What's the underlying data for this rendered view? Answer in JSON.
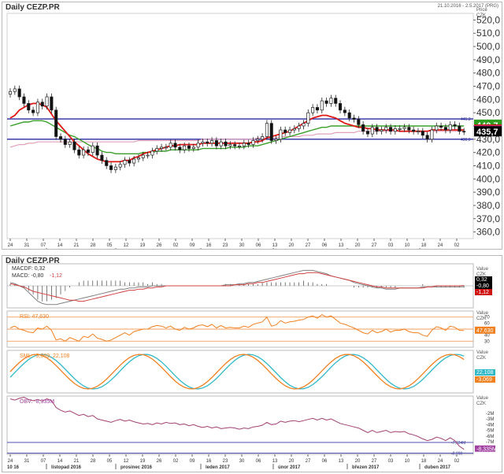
{
  "header": {
    "title": "Daily CEZP.PR",
    "date_range": "21.10.2016 - 2.5.2017 (PRG)",
    "price_label": "Price",
    "currency": "CZK",
    "title_lower": "Daily CEZP.PR"
  },
  "price_axis": {
    "ticks": [
      "520,0",
      "510,0",
      "500,0",
      "490,0",
      "480,0",
      "470,0",
      "460,0",
      "450,0",
      "440,0",
      "430,0",
      "420,0",
      "410,0",
      "400,0",
      "390,0",
      "380,0",
      "370,0",
      "360,0"
    ],
    "tick_values": [
      520,
      510,
      500,
      490,
      480,
      470,
      460,
      450,
      440,
      430,
      420,
      410,
      400,
      390,
      380,
      370,
      360
    ],
    "range": [
      355,
      525
    ]
  },
  "price_badges": [
    {
      "text": "440,7",
      "value": 440.7,
      "color": "#2e9e1f"
    },
    {
      "text": "437,0",
      "value": 437.0,
      "color": "#d01414"
    },
    {
      "text": "436,2",
      "value": 436.2,
      "color": "#c03ea0"
    },
    {
      "text": "435,7",
      "value": 435.7,
      "color": "#000000"
    }
  ],
  "hlines": [
    {
      "label": "445,3",
      "value": 445.3
    },
    {
      "label": "430,0",
      "value": 430.0
    }
  ],
  "x_axis": {
    "day_ticks": [
      "24",
      "31",
      "07",
      "14",
      "21",
      "28",
      "05",
      "12",
      "19",
      "26",
      "02",
      "09",
      "16",
      "23",
      "30",
      "06",
      "13",
      "20",
      "27",
      "06",
      "13",
      "20",
      "27",
      "03",
      "10",
      "18",
      "24",
      "02"
    ],
    "months": [
      "10 16",
      "listopad 2016",
      "prosinec 2016",
      "leden 2017",
      "únor 2017",
      "březen 2017",
      "duben 2017"
    ]
  },
  "chart_data": [
    {
      "type": "candlestick",
      "title": "Daily CEZP.PR",
      "ylabel": "Price CZK",
      "ylim": [
        355,
        525
      ],
      "close": [
        466,
        468,
        462,
        457,
        452,
        450,
        458,
        455,
        462,
        452,
        432,
        430,
        426,
        428,
        422,
        418,
        422,
        420,
        425,
        418,
        414,
        410,
        407,
        409,
        411,
        414,
        412,
        415,
        416,
        418,
        418,
        421,
        423,
        424,
        424,
        427,
        424,
        422,
        425,
        423,
        424,
        427,
        428,
        427,
        429,
        425,
        428,
        425,
        426,
        425,
        425,
        427,
        426,
        429,
        430,
        432,
        442,
        429,
        430,
        437,
        435,
        437,
        438,
        440,
        442,
        450,
        454,
        452,
        459,
        457,
        461,
        457,
        452,
        450,
        446,
        445,
        441,
        436,
        434,
        439,
        436,
        437,
        439,
        436,
        438,
        438,
        439,
        437,
        436,
        436,
        433,
        430,
        437,
        440,
        439,
        437,
        441,
        440,
        436,
        435.7
      ],
      "sma_short_red": [
        446,
        448,
        452,
        454,
        456,
        457,
        457,
        456,
        454,
        449,
        444,
        440,
        436,
        432,
        428,
        425,
        422,
        419,
        417,
        415,
        414,
        413,
        413,
        413,
        413,
        414,
        414,
        416,
        417,
        419,
        420,
        421,
        422,
        423,
        424,
        425,
        425,
        426,
        426,
        426,
        426,
        426,
        427,
        427,
        427,
        427,
        427,
        427,
        427,
        427,
        427,
        427,
        427,
        428,
        428,
        429,
        431,
        432,
        433,
        434,
        435,
        436,
        438,
        440,
        442,
        444,
        446,
        447,
        448,
        448,
        447,
        446,
        444,
        442,
        441,
        440,
        439,
        439,
        438,
        438,
        437,
        437,
        437,
        437,
        437,
        436,
        436,
        436,
        436,
        436,
        436,
        436,
        437,
        437,
        437,
        437,
        437,
        437,
        437,
        437
      ],
      "sma_long_green": [
        440,
        441,
        442,
        443,
        443,
        444,
        444,
        444,
        443,
        441,
        439,
        437,
        435,
        433,
        432,
        430,
        428,
        426,
        424,
        423,
        421,
        420,
        420,
        419,
        419,
        419,
        419,
        419,
        419,
        420,
        420,
        420,
        421,
        421,
        421,
        422,
        422,
        422,
        422,
        422,
        422,
        422,
        423,
        423,
        423,
        423,
        423,
        423,
        424,
        424,
        424,
        424,
        425,
        425,
        425,
        426,
        427,
        428,
        429,
        430,
        431,
        432,
        433,
        434,
        435,
        436,
        437,
        438,
        439,
        439,
        440,
        440,
        440,
        440,
        440,
        440,
        440,
        440,
        440,
        440,
        440,
        440,
        440,
        440,
        440,
        440,
        440,
        440,
        440,
        440,
        440,
        440,
        440,
        440,
        440,
        440,
        440,
        440,
        440,
        440
      ],
      "sma_pink": [
        424,
        425,
        426,
        426,
        427,
        427,
        428,
        428,
        428,
        428,
        428,
        428,
        428,
        428,
        428,
        428,
        428,
        428,
        428,
        428,
        428,
        428,
        428,
        428,
        428,
        428,
        428,
        428,
        429,
        429,
        429,
        429,
        429,
        429,
        429,
        429,
        429,
        429,
        429,
        429,
        429,
        429,
        430,
        430,
        430,
        430,
        430,
        430,
        430,
        430,
        430,
        430,
        430,
        430,
        431,
        431,
        431,
        431,
        431,
        432,
        432,
        432,
        432,
        432,
        433,
        433,
        433,
        434,
        434,
        434,
        434,
        435,
        435,
        435,
        435,
        435,
        436,
        436,
        436,
        436,
        436,
        436,
        436,
        436,
        436,
        436,
        436,
        436,
        436,
        436,
        436,
        436,
        436,
        436,
        436,
        436,
        436,
        436,
        436,
        436
      ]
    },
    {
      "type": "line",
      "title": "MACD",
      "series": [
        {
          "name": "MACDF: 0,32",
          "color": "#d04040",
          "values": [
            2,
            1,
            0,
            -1,
            -3,
            -5,
            -6,
            -7,
            -8,
            -9,
            -10,
            -11,
            -12,
            -13,
            -13,
            -14,
            -14,
            -13,
            -12,
            -11,
            -10,
            -9,
            -8,
            -7,
            -6,
            -5,
            -4,
            -4,
            -3,
            -3,
            -2,
            -2,
            -1,
            -1,
            0,
            0,
            0,
            0,
            0,
            0,
            0,
            0,
            0,
            0,
            0,
            0,
            0,
            0,
            0,
            1,
            1,
            1,
            2,
            2,
            3,
            3,
            4,
            5,
            6,
            7,
            8,
            9,
            10,
            11,
            11,
            12,
            12,
            12,
            11,
            10,
            9,
            8,
            7,
            6,
            5,
            4,
            3,
            2,
            1,
            0,
            -1,
            -1,
            -2,
            -2,
            -2,
            -2,
            -2,
            -2,
            -2,
            -2,
            -2,
            -1,
            -1,
            0,
            0,
            0,
            0,
            0,
            0,
            0.32
          ]
        },
        {
          "name": "MACD: -0,80",
          "color": "#808080",
          "values": [
            3,
            2,
            0,
            -2,
            -6,
            -10,
            -14,
            -16,
            -17,
            -17,
            -17,
            -16,
            -15,
            -14,
            -13,
            -12,
            -11,
            -10,
            -9,
            -8,
            -7,
            -6,
            -5,
            -4,
            -3,
            -3,
            -2,
            -2,
            -1,
            -1,
            -1,
            0,
            0,
            0,
            0,
            0,
            0,
            0,
            0,
            0,
            0,
            0,
            0,
            0,
            0,
            0,
            0,
            1,
            1,
            1,
            2,
            2,
            3,
            3,
            4,
            5,
            6,
            7,
            8,
            9,
            10,
            11,
            12,
            13,
            14,
            14,
            14,
            13,
            12,
            11,
            9,
            8,
            7,
            6,
            5,
            3,
            2,
            1,
            0,
            -1,
            -2,
            -2,
            -3,
            -3,
            -3,
            -2,
            -2,
            -2,
            -2,
            -2,
            -1,
            -1,
            -1,
            -1,
            -1,
            -1,
            -1,
            -1,
            -1,
            -0.8
          ]
        },
        {
          "name": "-1,12",
          "color": "#e04848",
          "values": []
        }
      ],
      "value_header": "Value",
      "currency": "CZK",
      "badges": [
        {
          "text": "0,32",
          "color": "#000000"
        },
        {
          "text": "-0,80",
          "color": "#000000"
        },
        {
          "text": "-1,12",
          "color": "#d01414"
        }
      ]
    },
    {
      "type": "line",
      "title": "RSI: 47,630",
      "ylim": [
        20,
        80
      ],
      "levels": [
        70,
        50,
        30
      ],
      "ticks": [
        "70",
        "60",
        "50",
        "40",
        "30"
      ],
      "series": [
        {
          "name": "RSI",
          "color": "#f08020",
          "values": [
            52,
            55,
            50,
            48,
            45,
            44,
            52,
            50,
            55,
            48,
            32,
            34,
            30,
            36,
            33,
            30,
            38,
            36,
            42,
            35,
            33,
            30,
            32,
            36,
            40,
            44,
            40,
            46,
            48,
            50,
            50,
            54,
            56,
            55,
            52,
            55,
            50,
            48,
            53,
            50,
            52,
            56,
            57,
            54,
            58,
            52,
            56,
            52,
            53,
            52,
            52,
            55,
            53,
            58,
            60,
            62,
            70,
            55,
            57,
            64,
            60,
            62,
            63,
            65,
            66,
            70,
            72,
            68,
            74,
            70,
            72,
            66,
            60,
            58,
            55,
            52,
            48,
            44,
            42,
            48,
            44,
            46,
            50,
            45,
            48,
            48,
            50,
            46,
            44,
            44,
            40,
            38,
            48,
            54,
            52,
            48,
            55,
            53,
            48,
            47.63
          ]
        }
      ],
      "badge": {
        "text": "47,630",
        "color": "#f08020"
      },
      "value_header": "Value",
      "currency": "CZK"
    },
    {
      "type": "line",
      "title": "SML: -3,069; 22,108",
      "series": [
        {
          "name": "-3,069",
          "color": "#f08020"
        },
        {
          "name": "22,108",
          "color": "#30b8c8"
        }
      ],
      "badges": [
        {
          "text": "22,108",
          "color": "#30b8c8"
        },
        {
          "text": "-3,069",
          "color": "#f08020"
        }
      ],
      "value_header": "Value",
      "currency": "CZK"
    },
    {
      "type": "line",
      "title": "OBV: -8,335M",
      "ticks": [
        "-2M",
        "-3M",
        "-4M",
        "-5M",
        "-6M",
        "-7M"
      ],
      "tick_values": [
        -2,
        -3,
        -4,
        -5,
        -6,
        -7
      ],
      "levels": [
        {
          "label": "-7,124M",
          "value": -7.124
        },
        {
          "label": "-8,998",
          "value": -8.998
        }
      ],
      "badge": {
        "text": "-8,335M",
        "color": "#a040a0"
      },
      "series": [
        {
          "name": "OBV",
          "color": "#a04070",
          "values": [
            0.5,
            0.3,
            0.6,
            0.8,
            0.4,
            0.2,
            0.4,
            0.1,
            0.5,
            0.2,
            -1.0,
            -1.5,
            -1.8,
            -1.6,
            -2.0,
            -2.4,
            -2.2,
            -2.6,
            -2.4,
            -3.0,
            -3.2,
            -3.4,
            -3.6,
            -3.3,
            -3.1,
            -3.4,
            -3.2,
            -3.5,
            -3.7,
            -3.9,
            -3.8,
            -4.0,
            -3.7,
            -3.9,
            -3.6,
            -3.8,
            -3.7,
            -4.0,
            -3.9,
            -4.2,
            -4.0,
            -4.3,
            -4.5,
            -4.3,
            -4.6,
            -4.4,
            -4.7,
            -4.6,
            -4.5,
            -4.6,
            -4.8,
            -4.6,
            -4.7,
            -4.4,
            -4.3,
            -4.1,
            -3.6,
            -4.0,
            -3.9,
            -3.4,
            -3.6,
            -3.4,
            -3.3,
            -3.5,
            -3.3,
            -3.1,
            -2.9,
            -3.2,
            -2.9,
            -3.2,
            -3.0,
            -3.4,
            -3.8,
            -4.0,
            -4.2,
            -4.4,
            -4.6,
            -5.0,
            -5.4,
            -5.0,
            -5.4,
            -5.2,
            -5.0,
            -5.4,
            -5.2,
            -5.3,
            -5.2,
            -5.6,
            -5.8,
            -6.1,
            -6.5,
            -6.8,
            -6.6,
            -6.2,
            -6.4,
            -6.8,
            -6.3,
            -6.8,
            -7.8,
            -8.335
          ]
        }
      ],
      "value_header": "Value",
      "currency": "CZK"
    }
  ]
}
